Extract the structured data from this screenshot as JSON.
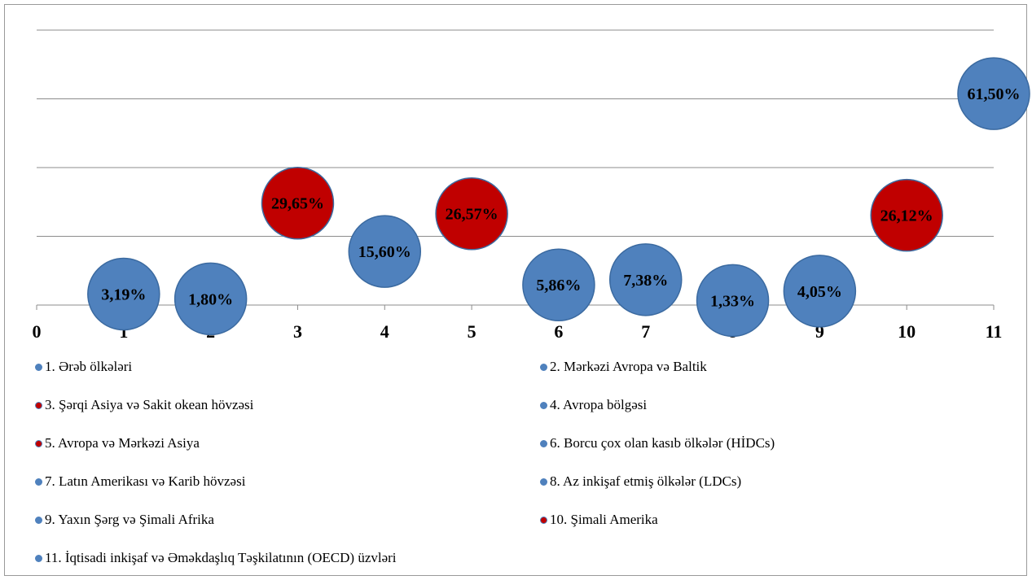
{
  "chart_data": {
    "type": "scatter",
    "xlim": [
      0,
      11
    ],
    "ylim": [
      0,
      80
    ],
    "grid": true,
    "x_ticks": [
      "0",
      "1",
      "2",
      "3",
      "4",
      "5",
      "6",
      "7",
      "8",
      "9",
      "10",
      "11"
    ],
    "legend_position": "bottom",
    "colors": {
      "blue": "#4f81bd",
      "red": "#c00000",
      "grid": "#8c8c8c"
    },
    "series": [
      {
        "name": "1. Ərəb ölkələri",
        "x": 1,
        "y": 3.19,
        "label": "3,19%",
        "color": "blue"
      },
      {
        "name": "2. Mərkəzi Avropa və Baltik",
        "x": 2,
        "y": 1.8,
        "label": "1,80%",
        "color": "blue"
      },
      {
        "name": "3. Şərqi Asiya və Sakit okean hövzəsi",
        "x": 3,
        "y": 29.65,
        "label": "29,65%",
        "color": "red"
      },
      {
        "name": "4. Avropa bölgəsi",
        "x": 4,
        "y": 15.6,
        "label": "15,60%",
        "color": "blue"
      },
      {
        "name": "5. Avropa və Mərkəzi Asiya",
        "x": 5,
        "y": 26.57,
        "label": "26,57%",
        "color": "red"
      },
      {
        "name": "6. Borcu çox olan kasıb ölkələr (HİDCs)",
        "x": 6,
        "y": 5.86,
        "label": "5,86%",
        "color": "blue"
      },
      {
        "name": "7. Latın Amerikası və Karib hövzəsi",
        "x": 7,
        "y": 7.38,
        "label": "7,38%",
        "color": "blue"
      },
      {
        "name": "8. Az inkişaf etmiş ölkələr (LDCs)",
        "x": 8,
        "y": 1.33,
        "label": "1,33%",
        "color": "blue"
      },
      {
        "name": "9. Yaxın Şərg və Şimali Afrika",
        "x": 9,
        "y": 4.05,
        "label": "4,05%",
        "color": "blue"
      },
      {
        "name": "10. Şimali Amerika",
        "x": 10,
        "y": 26.12,
        "label": "26,12%",
        "color": "red"
      },
      {
        "name": "11. İqtisadi inkişaf və Əməkdaşlıq Təşkilatının (OECD) üzvləri",
        "x": 11,
        "y": 61.5,
        "label": "61,50%",
        "color": "blue"
      }
    ]
  }
}
